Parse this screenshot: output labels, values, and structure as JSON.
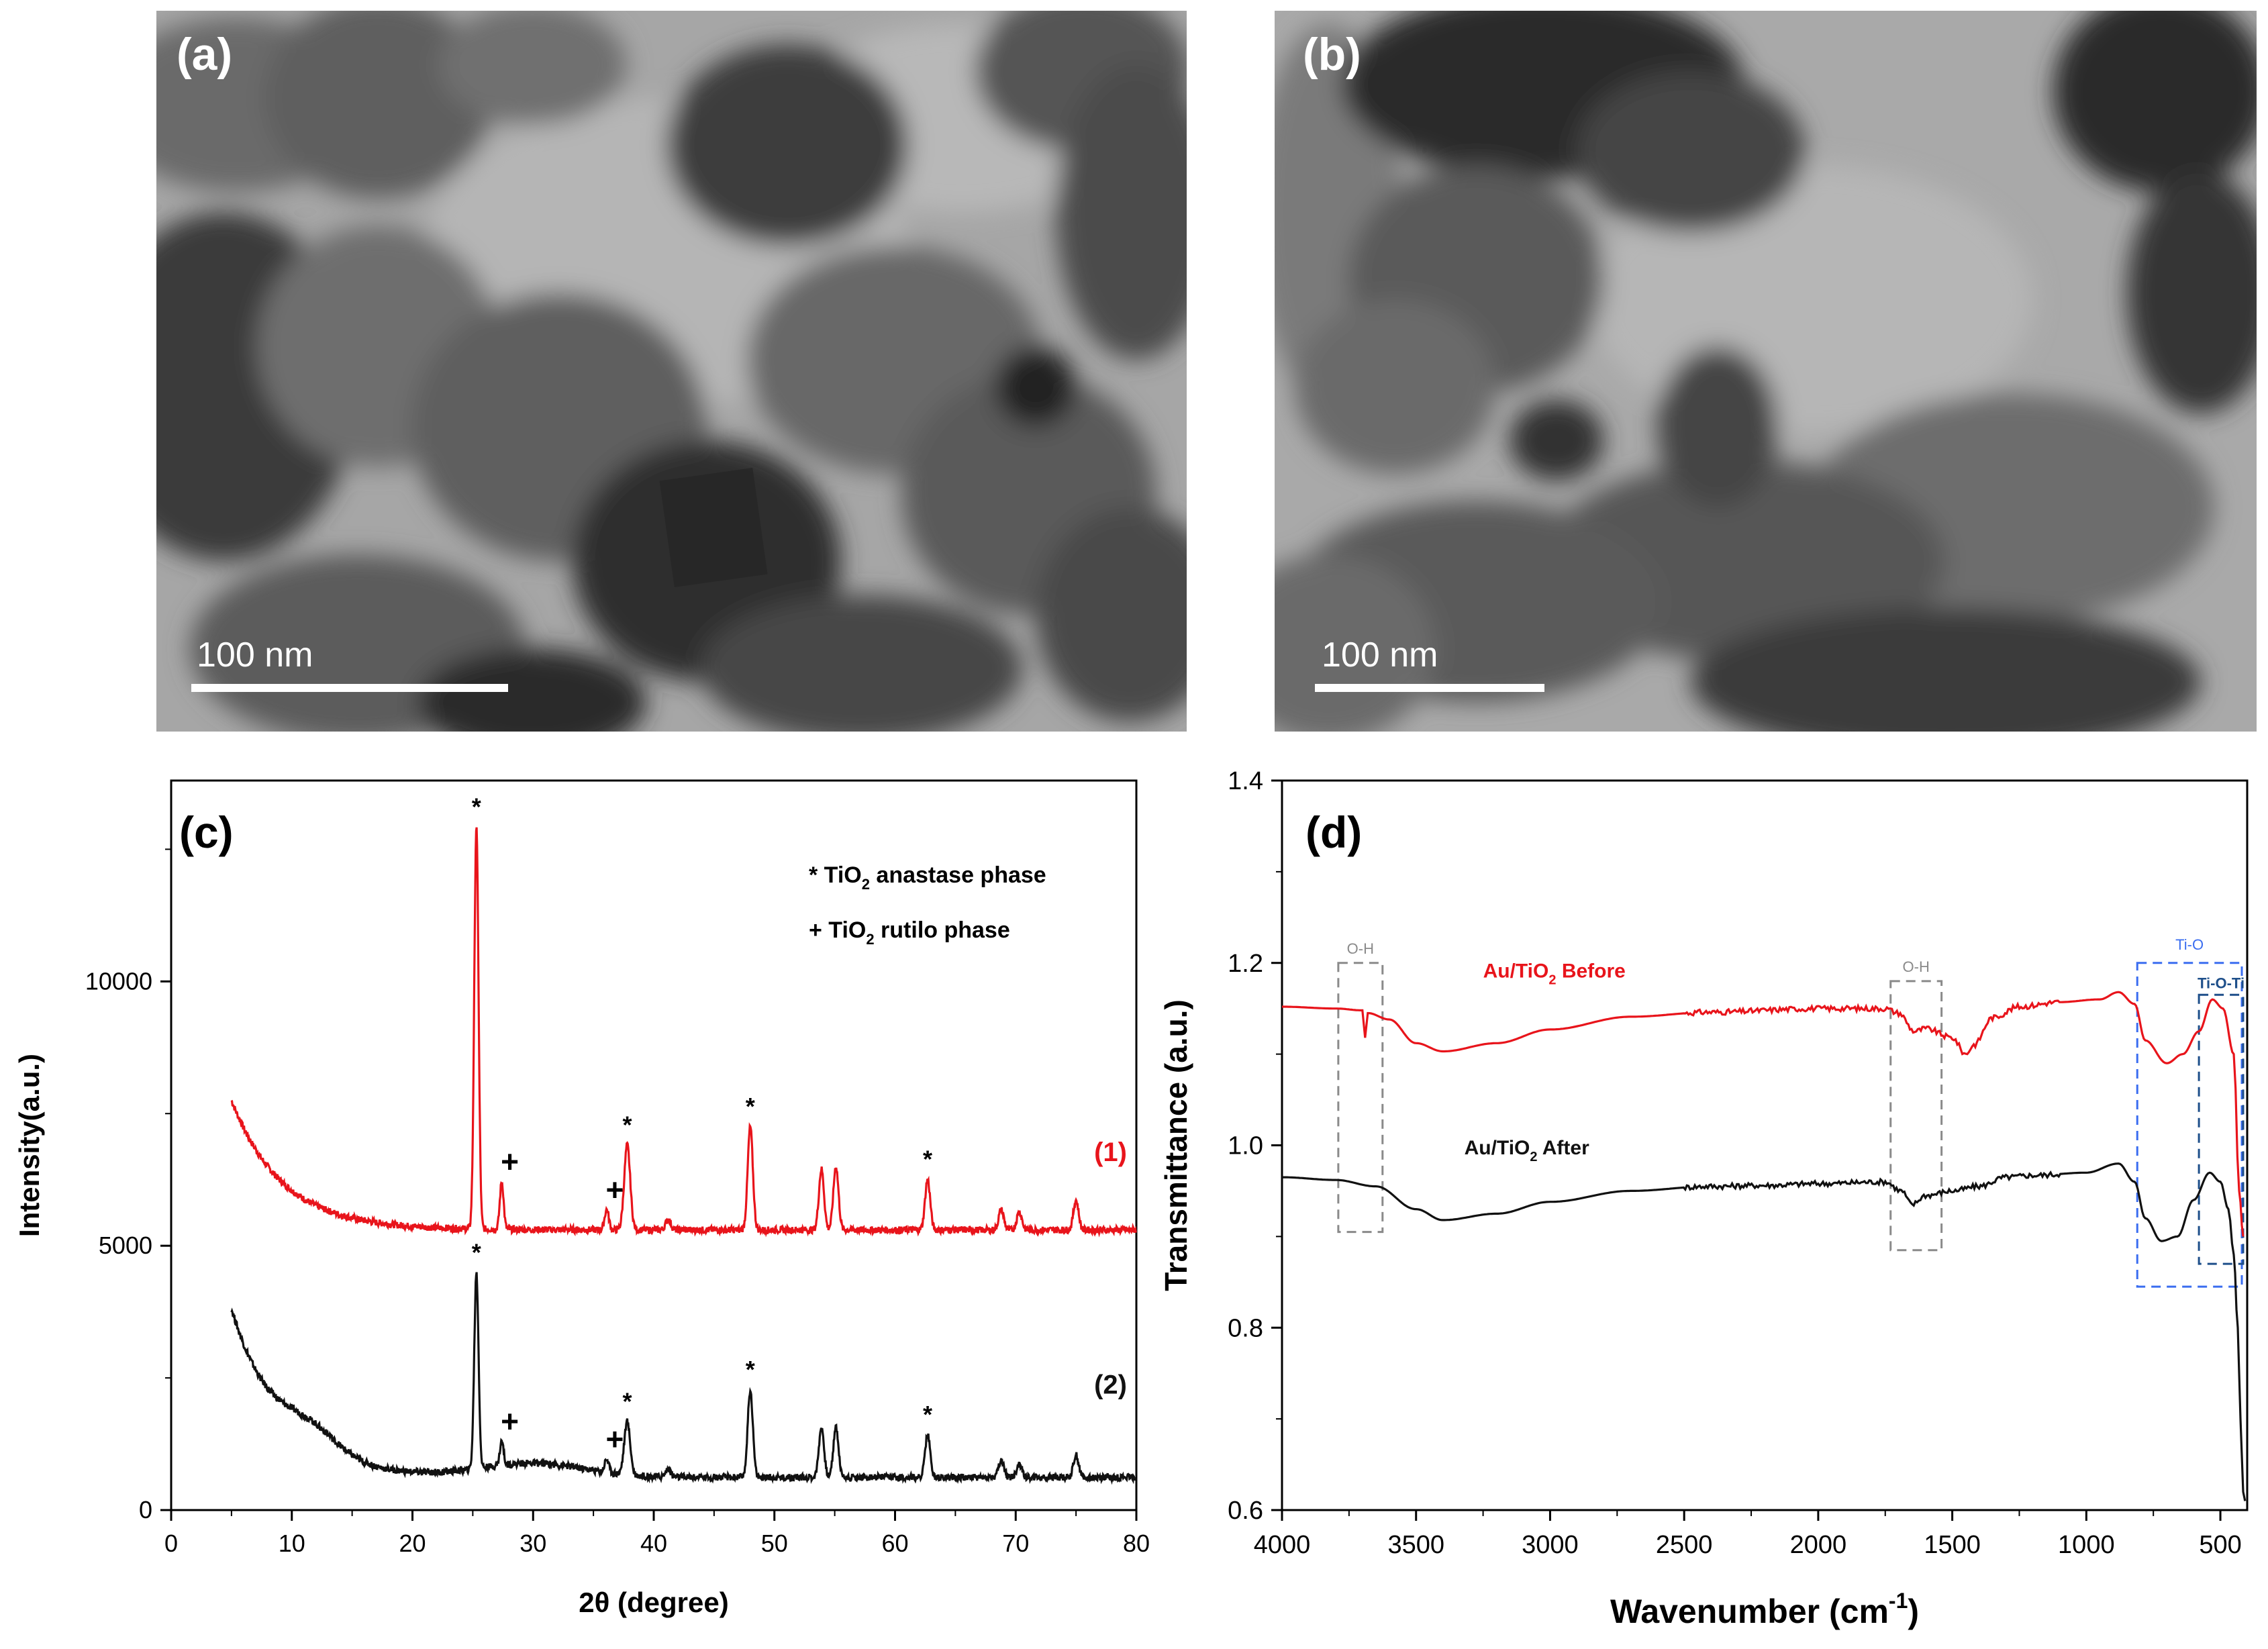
{
  "panels": {
    "a": {
      "label": "(a)",
      "scale_text": "100 nm"
    },
    "b": {
      "label": "(b)",
      "scale_text": "100 nm"
    }
  },
  "colors": {
    "red": "#e8141b",
    "black": "#111111",
    "gray_box": "#8a8a8a",
    "blue_box": "#3a6df0",
    "navy_box": "#1e4f8a"
  },
  "chart_data": [
    {
      "id": "c",
      "type": "line",
      "panel_label": "(c)",
      "xlabel": "2θ (degree)",
      "ylabel": "Intensity(a.u.)",
      "xlim": [
        0,
        80
      ],
      "ylim": [
        0,
        13800
      ],
      "xticks": [
        0,
        10,
        20,
        30,
        40,
        50,
        60,
        70,
        80
      ],
      "yticks": [
        0,
        5000,
        10000
      ],
      "legend": [
        {
          "symbol": "*",
          "text": "TiO",
          "sub": "2",
          "rest": " anastase phase"
        },
        {
          "symbol": "+",
          "text": "TiO",
          "sub": "2",
          "rest": " rutilo phase"
        }
      ],
      "series": [
        {
          "name": "(1)",
          "color": "#e8141b",
          "baseline": 5300,
          "start": 7750,
          "shoulder": 0,
          "peaks": [
            [
              25.3,
              7600,
              0.25
            ],
            [
              27.4,
              900,
              0.22
            ],
            [
              36.1,
              380,
              0.25
            ],
            [
              37.8,
              1600,
              0.35
            ],
            [
              41.2,
              200,
              0.3
            ],
            [
              48.0,
              1950,
              0.3
            ],
            [
              53.9,
              1150,
              0.3
            ],
            [
              55.1,
              1200,
              0.3
            ],
            [
              62.7,
              950,
              0.3
            ],
            [
              68.8,
              380,
              0.3
            ],
            [
              70.3,
              340,
              0.3
            ],
            [
              75.0,
              560,
              0.3
            ]
          ],
          "markers": [
            [
              "*",
              25.3
            ],
            [
              "+",
              27.4
            ],
            [
              "+",
              36.1
            ],
            [
              "*",
              37.8
            ],
            [
              "*",
              48.0
            ],
            [
              "*",
              62.7
            ]
          ]
        },
        {
          "name": "(2)",
          "color": "#111111",
          "baseline": 620,
          "start": 3800,
          "shoulder": 1,
          "peaks": [
            [
              25.3,
              3700,
              0.25
            ],
            [
              27.4,
              450,
              0.22
            ],
            [
              36.1,
              250,
              0.25
            ],
            [
              37.8,
              1000,
              0.35
            ],
            [
              41.2,
              150,
              0.3
            ],
            [
              48.0,
              1650,
              0.3
            ],
            [
              53.9,
              950,
              0.3
            ],
            [
              55.1,
              950,
              0.3
            ],
            [
              62.7,
              800,
              0.3
            ],
            [
              68.8,
              320,
              0.3
            ],
            [
              70.3,
              260,
              0.3
            ],
            [
              75.0,
              420,
              0.3
            ]
          ],
          "markers": [
            [
              "*",
              25.3
            ],
            [
              "+",
              27.4
            ],
            [
              "+",
              36.1
            ],
            [
              "*",
              37.8
            ],
            [
              "*",
              48.0
            ],
            [
              "*",
              62.7
            ]
          ]
        }
      ]
    },
    {
      "id": "d",
      "type": "line",
      "panel_label": "(d)",
      "xlabel": "Wavenumber (cm",
      "xlabel_sup": "-1",
      "xlabel_end": ")",
      "ylabel": "Transmittance (a.u.)",
      "xlim": [
        4000,
        400
      ],
      "ylim": [
        0.6,
        1.4
      ],
      "xticks": [
        4000,
        3500,
        3000,
        2500,
        2000,
        1500,
        1000,
        500
      ],
      "yticks": [
        "0.6",
        "0.8",
        "1.0",
        "1.2",
        "1.4"
      ],
      "series": [
        {
          "name": "Au/TiO",
          "sub": "2",
          "rest": " Before",
          "color": "#e8141b",
          "points": [
            [
              4000,
              1.152
            ],
            [
              3800,
              1.15
            ],
            [
              3700,
              1.148
            ],
            [
              3690,
              1.118
            ],
            [
              3680,
              1.145
            ],
            [
              3600,
              1.138
            ],
            [
              3500,
              1.112
            ],
            [
              3400,
              1.103
            ],
            [
              3200,
              1.112
            ],
            [
              3000,
              1.127
            ],
            [
              2700,
              1.141
            ],
            [
              2400,
              1.146
            ],
            [
              2000,
              1.15
            ],
            [
              1750,
              1.15
            ],
            [
              1700,
              1.145
            ],
            [
              1640,
              1.125
            ],
            [
              1600,
              1.128
            ],
            [
              1500,
              1.118
            ],
            [
              1450,
              1.1
            ],
            [
              1420,
              1.11
            ],
            [
              1350,
              1.14
            ],
            [
              1250,
              1.152
            ],
            [
              1100,
              1.157
            ],
            [
              950,
              1.16
            ],
            [
              880,
              1.168
            ],
            [
              820,
              1.155
            ],
            [
              780,
              1.115
            ],
            [
              700,
              1.09
            ],
            [
              640,
              1.1
            ],
            [
              580,
              1.125
            ],
            [
              530,
              1.16
            ],
            [
              490,
              1.15
            ],
            [
              450,
              1.1
            ],
            [
              430,
              0.95
            ],
            [
              415,
              0.9
            ]
          ]
        },
        {
          "name": "Au/TiO",
          "sub": "2",
          "rest": " After",
          "color": "#111111",
          "points": [
            [
              4000,
              0.965
            ],
            [
              3800,
              0.962
            ],
            [
              3650,
              0.955
            ],
            [
              3500,
              0.93
            ],
            [
              3400,
              0.918
            ],
            [
              3200,
              0.925
            ],
            [
              3000,
              0.938
            ],
            [
              2700,
              0.95
            ],
            [
              2400,
              0.955
            ],
            [
              2200,
              0.956
            ],
            [
              2000,
              0.958
            ],
            [
              1750,
              0.96
            ],
            [
              1690,
              0.95
            ],
            [
              1650,
              0.935
            ],
            [
              1600,
              0.945
            ],
            [
              1500,
              0.95
            ],
            [
              1400,
              0.955
            ],
            [
              1300,
              0.965
            ],
            [
              1200,
              0.967
            ],
            [
              1000,
              0.97
            ],
            [
              880,
              0.98
            ],
            [
              820,
              0.96
            ],
            [
              780,
              0.92
            ],
            [
              720,
              0.895
            ],
            [
              660,
              0.9
            ],
            [
              600,
              0.94
            ],
            [
              540,
              0.97
            ],
            [
              500,
              0.96
            ],
            [
              470,
              0.93
            ],
            [
              450,
              0.88
            ],
            [
              435,
              0.8
            ],
            [
              425,
              0.7
            ],
            [
              415,
              0.62
            ],
            [
              408,
              0.61
            ]
          ]
        }
      ],
      "boxes": [
        {
          "label": "O-H",
          "x1": 3790,
          "x2": 3625,
          "y1": 0.905,
          "y2": 1.2,
          "color": "#8a8a8a"
        },
        {
          "label": "O-H",
          "x1": 1730,
          "x2": 1540,
          "y1": 0.885,
          "y2": 1.18,
          "color": "#8a8a8a"
        },
        {
          "label": "Ti-O",
          "x1": 810,
          "x2": 420,
          "y1": 0.845,
          "y2": 1.2,
          "color": "#3a6df0"
        },
        {
          "label": "Ti-O-Ti",
          "x1": 580,
          "x2": 415,
          "y1": 0.87,
          "y2": 1.165,
          "color": "#1e4f8a"
        }
      ]
    }
  ]
}
